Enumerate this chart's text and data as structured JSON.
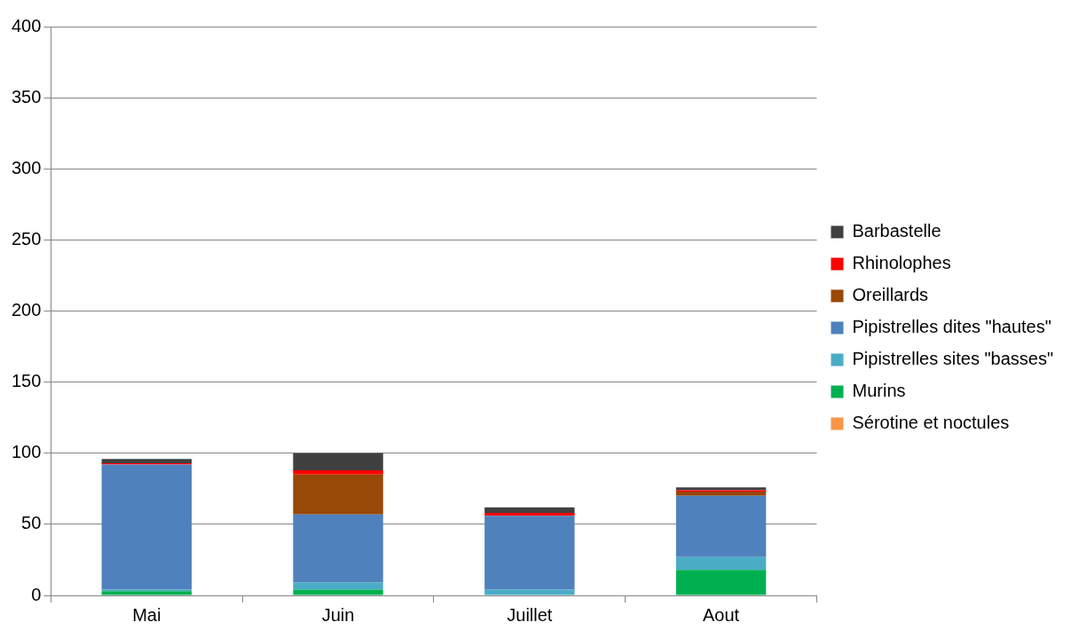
{
  "chart_data": {
    "type": "bar",
    "stacked": true,
    "categories": [
      "Mai",
      "Juin",
      "Juillet",
      "Aout"
    ],
    "series": [
      {
        "name": "Sérotine et noctules",
        "color": "#f79646",
        "values": [
          0,
          0,
          0,
          0
        ]
      },
      {
        "name": "Murins",
        "color": "#00b050",
        "values": [
          3,
          4,
          0,
          18
        ]
      },
      {
        "name": "Pipistrelles sites \"basses\"",
        "color": "#4bacc6",
        "values": [
          1,
          5,
          4,
          9
        ]
      },
      {
        "name": "Pipistrelles dites \"hautes\"",
        "color": "#4f81bd",
        "values": [
          88,
          48,
          52,
          43
        ]
      },
      {
        "name": "Oreillards",
        "color": "#984807",
        "values": [
          0,
          28,
          0,
          3
        ]
      },
      {
        "name": "Rhinolophes",
        "color": "#ff0000",
        "values": [
          1,
          3,
          2,
          1
        ]
      },
      {
        "name": "Barbastelle",
        "color": "#404040",
        "values": [
          3,
          12,
          4,
          2
        ]
      }
    ],
    "ylim": [
      0,
      400
    ],
    "yticks": [
      0,
      50,
      100,
      150,
      200,
      250,
      300,
      350,
      400
    ],
    "grid": "y",
    "legend": "right"
  }
}
